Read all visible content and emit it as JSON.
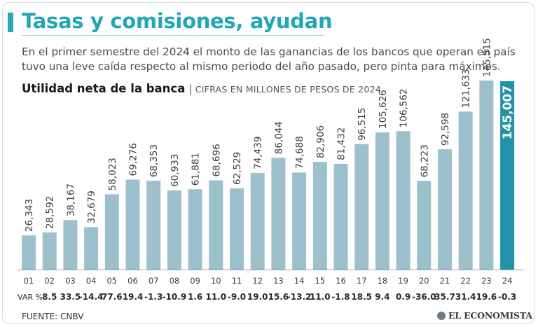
{
  "header": {
    "title": "Tasas y comisiones, ayudan",
    "subtitle": "En el primer semestre del 2024 el monto de las ganancias de los bancos que operan en país tuvo una leve caída respecto al mismo periodo del año pasado, pero pinta para máximos."
  },
  "footer": {
    "source": "FUENTE:  CNBV",
    "brand": "EL ECONOMISTA"
  },
  "colors": {
    "bar": "#9cc0cc",
    "highlight": "#1f93a8",
    "accent": "#21a7b6"
  },
  "chart_data": {
    "type": "bar",
    "title": "Utilidad neta de la banca",
    "units": "CIFRAS EN MILLONES DE PESOS DE 2024",
    "xlabel": "",
    "ylabel": "",
    "ylim": [
      0,
      145515
    ],
    "categories": [
      "01",
      "02",
      "03",
      "04",
      "05",
      "06",
      "07",
      "08",
      "09",
      "10",
      "11",
      "12",
      "13",
      "14",
      "15",
      "16",
      "17",
      "18",
      "19",
      "20",
      "21",
      "22",
      "23",
      "24"
    ],
    "values": [
      26343,
      28592,
      38167,
      32679,
      58023,
      69276,
      68353,
      60933,
      61881,
      68696,
      62529,
      74439,
      86044,
      74688,
      82906,
      81432,
      96515,
      105626,
      106562,
      68223,
      92598,
      121633,
      145515,
      145007
    ],
    "value_labels": [
      "26,343",
      "28,592",
      "38,167",
      "32,679",
      "58,023",
      "69,276",
      "68,353",
      "60,933",
      "61,881",
      "68,696",
      "62,529",
      "74,439",
      "86,044",
      "74,688",
      "82,906",
      "81,432",
      "96,515",
      "105,626",
      "106,562",
      "68,223",
      "92,598",
      "121,633",
      "145,515",
      "145,007"
    ],
    "highlight_index": 23,
    "var_label": "VAR %",
    "var_pct": [
      "8.5",
      "33.5",
      "-14.4",
      "77.6",
      "19.4",
      "-1.3",
      "-10.9",
      "1.6",
      "11.0",
      "-9.0",
      "19.0",
      "15.6",
      "-13.2",
      "11.0",
      "-1.8",
      "18.5",
      "9.4",
      "0.9",
      "-36.0",
      "35.7",
      "31.4",
      "19.6",
      "-0.3"
    ]
  }
}
